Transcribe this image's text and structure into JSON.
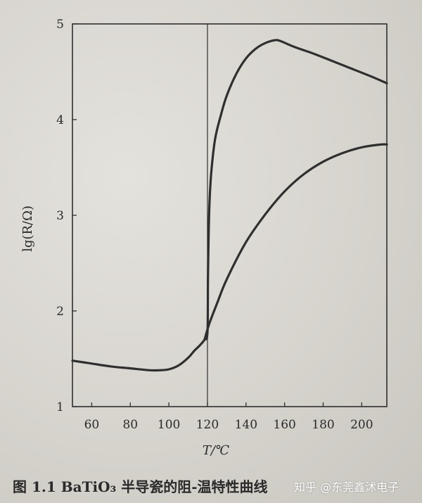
{
  "chart_data": {
    "type": "line",
    "xlabel": "T/℃",
    "ylabel": "lg(R/Ω)",
    "xlim": [
      50,
      213
    ],
    "ylim": [
      1,
      5
    ],
    "x_ticks": [
      60,
      80,
      100,
      120,
      140,
      160,
      180,
      200
    ],
    "y_ticks": [
      1,
      2,
      3,
      4,
      5
    ],
    "vline_x": 120,
    "grid": false,
    "legend": "none",
    "series": [
      {
        "x": [
          50,
          60,
          70,
          80,
          90,
          95,
          100,
          105,
          110,
          113,
          116,
          118.5,
          120,
          120.3,
          121,
          122,
          124,
          127,
          130,
          135,
          140,
          145,
          150,
          155,
          158,
          165,
          175,
          185,
          195,
          205,
          213
        ],
        "y": [
          1.48,
          1.45,
          1.42,
          1.4,
          1.38,
          1.38,
          1.39,
          1.43,
          1.51,
          1.58,
          1.64,
          1.7,
          1.78,
          2.4,
          3.1,
          3.45,
          3.8,
          4.05,
          4.25,
          4.48,
          4.64,
          4.74,
          4.8,
          4.83,
          4.82,
          4.76,
          4.69,
          4.61,
          4.53,
          4.45,
          4.38
        ]
      },
      {
        "x": [
          118.5,
          121,
          125,
          130,
          140,
          150,
          160,
          170,
          180,
          190,
          200,
          210,
          213
        ],
        "y": [
          1.7,
          1.87,
          2.08,
          2.33,
          2.72,
          3.01,
          3.25,
          3.43,
          3.56,
          3.65,
          3.71,
          3.74,
          3.74
        ]
      }
    ],
    "caption": "图 1.1   BaTiO₃ 半导瓷的阻-温特性曲线",
    "watermark": "知乎 @东莞鑫沭电子",
    "colors": {
      "line": "#2f2f2f",
      "paper": "#d8d5cf"
    }
  }
}
